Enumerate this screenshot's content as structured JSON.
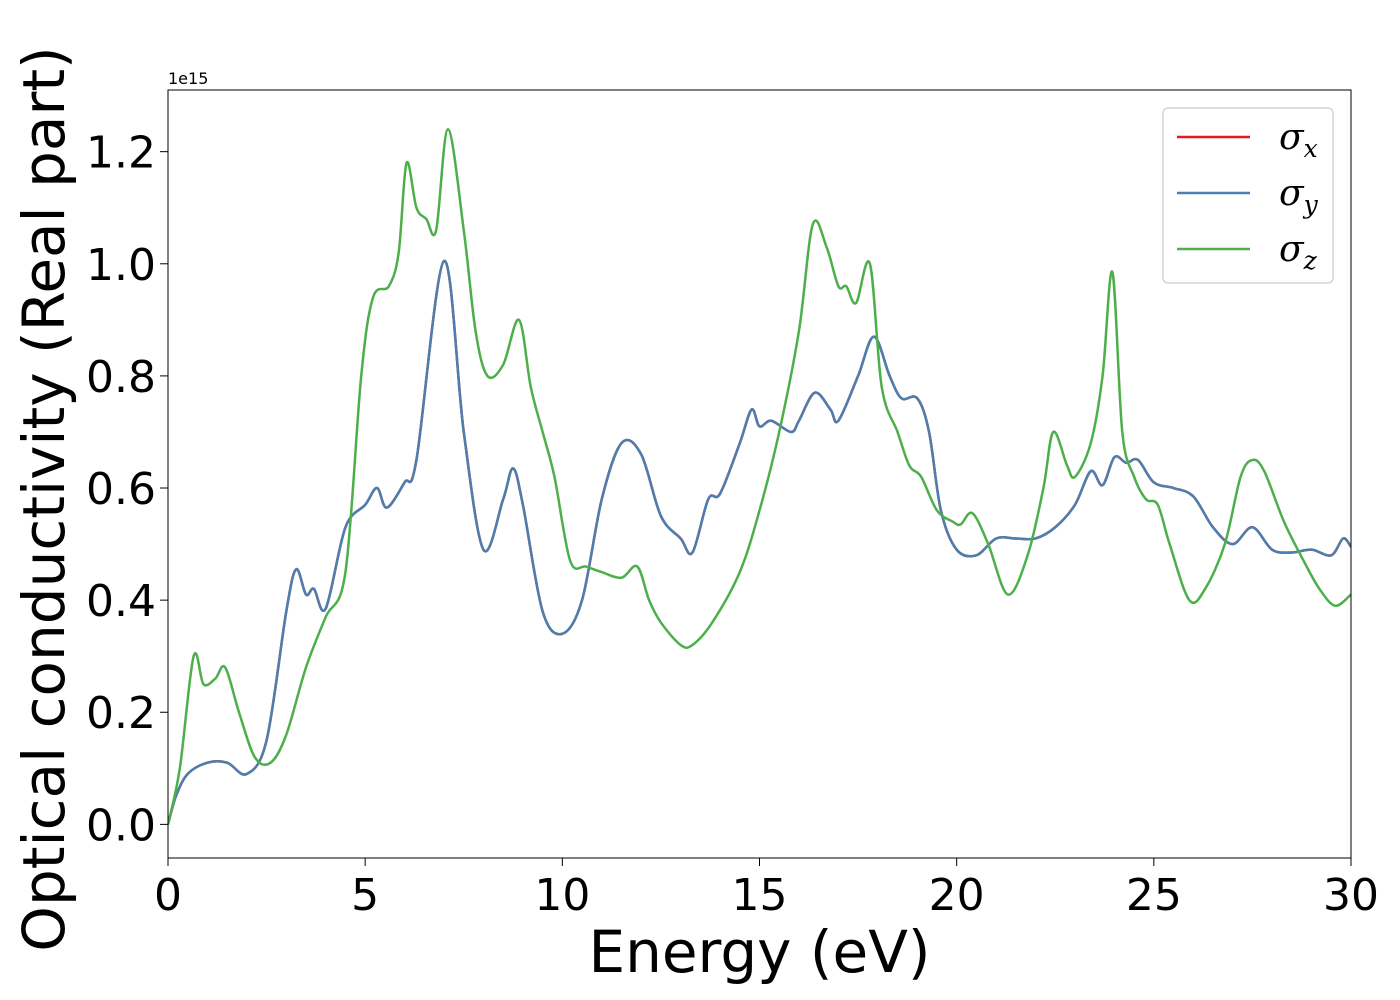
{
  "chart_data": {
    "type": "line",
    "xlabel": "Energy (eV)",
    "ylabel": "Optical conductivity (Real part)",
    "y_offset_label": "1e15",
    "xlim": [
      0,
      30
    ],
    "ylim": [
      -0.06,
      1.31
    ],
    "x_ticks": [
      0,
      5,
      10,
      15,
      20,
      25,
      30
    ],
    "x_tick_labels": [
      "0",
      "5",
      "10",
      "15",
      "20",
      "25",
      "30"
    ],
    "y_ticks": [
      0.0,
      0.2,
      0.4,
      0.6,
      0.8,
      1.0,
      1.2
    ],
    "y_tick_labels": [
      "0.0",
      "0.2",
      "0.4",
      "0.6",
      "0.8",
      "1.0",
      "1.2"
    ],
    "grid": false,
    "legend_position": "top-right",
    "series": [
      {
        "name": "σx",
        "legend_base": "σ",
        "legend_sub": "x",
        "color": "#e41a1c",
        "x": [
          0,
          0.2,
          0.5,
          1.0,
          1.5,
          2.0,
          2.5,
          3.0,
          3.25,
          3.5,
          3.7,
          4.0,
          4.5,
          5.0,
          5.3,
          5.55,
          6.0,
          6.3,
          7.0,
          7.5,
          8.0,
          8.5,
          8.75,
          9.0,
          9.5,
          10.0,
          10.5,
          11.0,
          11.5,
          12.0,
          12.5,
          13.0,
          13.3,
          13.7,
          14.0,
          14.5,
          14.8,
          15.0,
          15.3,
          15.8,
          16.0,
          16.4,
          16.8,
          17.0,
          17.5,
          17.9,
          18.3,
          18.6,
          19.0,
          19.3,
          19.6,
          20.0,
          20.5,
          21.0,
          21.5,
          22.0,
          22.5,
          23.0,
          23.4,
          23.7,
          24.0,
          24.3,
          24.6,
          25.0,
          25.5,
          26.0,
          26.5,
          27.0,
          27.5,
          28.0,
          28.5,
          29.0,
          29.5,
          29.8,
          30.0
        ],
        "values": [
          0.0,
          0.05,
          0.09,
          0.11,
          0.11,
          0.09,
          0.15,
          0.38,
          0.455,
          0.41,
          0.42,
          0.385,
          0.53,
          0.57,
          0.6,
          0.565,
          0.61,
          0.65,
          1.005,
          0.7,
          0.49,
          0.58,
          0.635,
          0.57,
          0.38,
          0.34,
          0.4,
          0.58,
          0.68,
          0.66,
          0.55,
          0.51,
          0.485,
          0.58,
          0.59,
          0.68,
          0.74,
          0.71,
          0.72,
          0.7,
          0.72,
          0.77,
          0.74,
          0.72,
          0.8,
          0.87,
          0.8,
          0.76,
          0.76,
          0.7,
          0.56,
          0.49,
          0.48,
          0.51,
          0.51,
          0.51,
          0.53,
          0.57,
          0.63,
          0.605,
          0.655,
          0.645,
          0.65,
          0.61,
          0.6,
          0.585,
          0.53,
          0.5,
          0.53,
          0.49,
          0.485,
          0.49,
          0.48,
          0.51,
          0.495
        ]
      },
      {
        "name": "σy",
        "legend_base": "σ",
        "legend_sub": "y",
        "color": "#4a7fb0",
        "x": [
          0,
          0.2,
          0.5,
          1.0,
          1.5,
          2.0,
          2.5,
          3.0,
          3.25,
          3.5,
          3.7,
          4.0,
          4.5,
          5.0,
          5.3,
          5.55,
          6.0,
          6.3,
          7.0,
          7.5,
          8.0,
          8.5,
          8.75,
          9.0,
          9.5,
          10.0,
          10.5,
          11.0,
          11.5,
          12.0,
          12.5,
          13.0,
          13.3,
          13.7,
          14.0,
          14.5,
          14.8,
          15.0,
          15.3,
          15.8,
          16.0,
          16.4,
          16.8,
          17.0,
          17.5,
          17.9,
          18.3,
          18.6,
          19.0,
          19.3,
          19.6,
          20.0,
          20.5,
          21.0,
          21.5,
          22.0,
          22.5,
          23.0,
          23.4,
          23.7,
          24.0,
          24.3,
          24.6,
          25.0,
          25.5,
          26.0,
          26.5,
          27.0,
          27.5,
          28.0,
          28.5,
          29.0,
          29.5,
          29.8,
          30.0
        ],
        "values": [
          0.0,
          0.05,
          0.09,
          0.11,
          0.11,
          0.09,
          0.15,
          0.38,
          0.455,
          0.41,
          0.42,
          0.385,
          0.53,
          0.57,
          0.6,
          0.565,
          0.61,
          0.65,
          1.005,
          0.7,
          0.49,
          0.58,
          0.635,
          0.57,
          0.38,
          0.34,
          0.4,
          0.58,
          0.68,
          0.66,
          0.55,
          0.51,
          0.485,
          0.58,
          0.59,
          0.68,
          0.74,
          0.71,
          0.72,
          0.7,
          0.72,
          0.77,
          0.74,
          0.72,
          0.8,
          0.87,
          0.8,
          0.76,
          0.76,
          0.7,
          0.56,
          0.49,
          0.48,
          0.51,
          0.51,
          0.51,
          0.53,
          0.57,
          0.63,
          0.605,
          0.655,
          0.645,
          0.65,
          0.61,
          0.6,
          0.585,
          0.53,
          0.5,
          0.53,
          0.49,
          0.485,
          0.49,
          0.48,
          0.51,
          0.495
        ]
      },
      {
        "name": "σz",
        "legend_base": "σ",
        "legend_sub": "z",
        "color": "#4daf4a",
        "x": [
          0,
          0.3,
          0.65,
          0.9,
          1.2,
          1.45,
          1.8,
          2.2,
          2.6,
          3.0,
          3.5,
          4.0,
          4.5,
          4.9,
          5.2,
          5.6,
          5.85,
          6.05,
          6.3,
          6.55,
          6.8,
          7.1,
          7.5,
          7.8,
          8.1,
          8.5,
          8.9,
          9.2,
          9.5,
          9.8,
          10.2,
          10.6,
          11.0,
          11.5,
          11.9,
          12.2,
          12.5,
          13.0,
          13.3,
          13.8,
          14.5,
          15.0,
          15.5,
          16.0,
          16.35,
          16.7,
          17.0,
          17.2,
          17.45,
          17.8,
          18.1,
          18.5,
          18.8,
          19.1,
          19.5,
          19.9,
          20.1,
          20.4,
          20.8,
          21.3,
          21.8,
          22.2,
          22.45,
          22.8,
          23.0,
          23.4,
          23.7,
          23.95,
          24.2,
          24.5,
          24.8,
          25.1,
          25.4,
          25.9,
          26.3,
          26.8,
          27.2,
          27.5,
          27.8,
          28.3,
          28.8,
          29.2,
          29.6,
          30.0
        ],
        "values": [
          0.0,
          0.1,
          0.3,
          0.25,
          0.26,
          0.28,
          0.2,
          0.12,
          0.11,
          0.16,
          0.28,
          0.37,
          0.45,
          0.8,
          0.94,
          0.96,
          1.02,
          1.18,
          1.1,
          1.08,
          1.06,
          1.24,
          1.06,
          0.88,
          0.8,
          0.82,
          0.9,
          0.78,
          0.7,
          0.62,
          0.47,
          0.46,
          0.45,
          0.44,
          0.46,
          0.4,
          0.36,
          0.32,
          0.32,
          0.36,
          0.45,
          0.56,
          0.7,
          0.88,
          1.07,
          1.03,
          0.96,
          0.96,
          0.93,
          1.0,
          0.78,
          0.7,
          0.64,
          0.62,
          0.56,
          0.54,
          0.535,
          0.555,
          0.5,
          0.41,
          0.48,
          0.6,
          0.7,
          0.64,
          0.62,
          0.68,
          0.8,
          0.985,
          0.7,
          0.62,
          0.58,
          0.57,
          0.5,
          0.4,
          0.42,
          0.5,
          0.62,
          0.65,
          0.63,
          0.54,
          0.47,
          0.42,
          0.39,
          0.41
        ]
      }
    ]
  }
}
